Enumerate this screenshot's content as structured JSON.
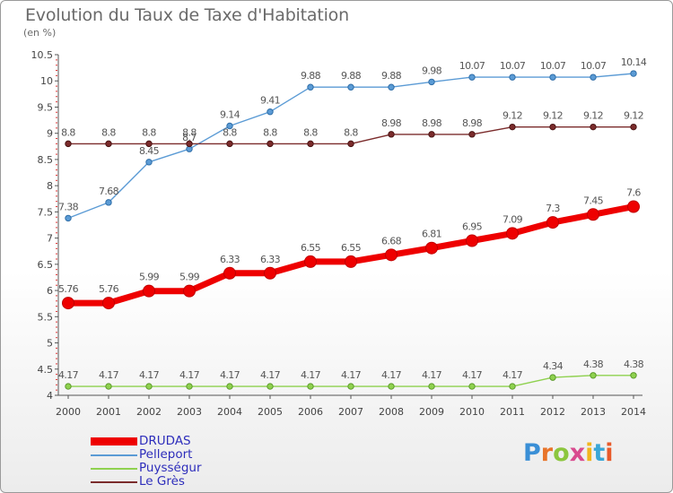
{
  "header": {
    "title": "Evolution du Taux de Taxe d'Habitation",
    "subtitle": "(en %)"
  },
  "logo": {
    "text": "Proxiti",
    "letter_colors": [
      "#3a8fd6",
      "#e8742a",
      "#8cc63e",
      "#d94b8f",
      "#f2b51c",
      "#3aa6d6",
      "#e85a2a"
    ]
  },
  "chart_data": {
    "type": "line",
    "x": [
      "2000",
      "2001",
      "2002",
      "2003",
      "2004",
      "2005",
      "2006",
      "2007",
      "2008",
      "2009",
      "2010",
      "2011",
      "2012",
      "2013",
      "2014"
    ],
    "ylim": [
      4,
      10.5
    ],
    "yticks": [
      "4",
      "4.5",
      "5",
      "5.5",
      "6",
      "6.5",
      "7",
      "7.5",
      "8",
      "8.5",
      "9",
      "9.5",
      "10",
      "10.5"
    ],
    "grid": false,
    "legend_position": "bottom-left",
    "series": [
      {
        "name": "DRUDAS",
        "color": "#ee0000",
        "values": [
          5.76,
          5.76,
          5.99,
          5.99,
          6.33,
          6.33,
          6.55,
          6.55,
          6.68,
          6.81,
          6.95,
          7.09,
          7.3,
          7.45,
          7.6
        ],
        "labels": [
          "5.76",
          "5.76",
          "5.99",
          "5.99",
          "6.33",
          "6.33",
          "6.55",
          "6.55",
          "6.68",
          "6.81",
          "6.95",
          "7.09",
          "7.3",
          "7.45",
          "7.6"
        ]
      },
      {
        "name": "Pelleport",
        "color": "#5b9bd5",
        "values": [
          7.38,
          7.68,
          8.45,
          8.7,
          9.14,
          9.41,
          9.88,
          9.88,
          9.88,
          9.98,
          10.07,
          10.07,
          10.07,
          10.07,
          10.14
        ],
        "labels": [
          "7.38",
          "7.68",
          "8.45",
          "8.7",
          "9.14",
          "9.41",
          "9.88",
          "9.88",
          "9.88",
          "9.98",
          "10.07",
          "10.07",
          "10.07",
          "10.07",
          "10.14"
        ]
      },
      {
        "name": "Puysségur",
        "color": "#8fd14f",
        "values": [
          4.17,
          4.17,
          4.17,
          4.17,
          4.17,
          4.17,
          4.17,
          4.17,
          4.17,
          4.17,
          4.17,
          4.17,
          4.34,
          4.38,
          4.38
        ],
        "labels": [
          "4.17",
          "4.17",
          "4.17",
          "4.17",
          "4.17",
          "4.17",
          "4.17",
          "4.17",
          "4.17",
          "4.17",
          "4.17",
          "4.17",
          "4.34",
          "4.38",
          "4.38"
        ]
      },
      {
        "name": "Le Grès",
        "color": "#7b2c2c",
        "values": [
          8.8,
          8.8,
          8.8,
          8.8,
          8.8,
          8.8,
          8.8,
          8.8,
          8.98,
          8.98,
          8.98,
          9.12,
          9.12,
          9.12,
          9.12
        ],
        "labels": [
          "8.8",
          "8.8",
          "8.8",
          "8.8",
          "8.8",
          "8.8",
          "8.8",
          "8.8",
          "8.98",
          "8.98",
          "8.98",
          "9.12",
          "9.12",
          "9.12",
          "9.12"
        ]
      }
    ]
  }
}
